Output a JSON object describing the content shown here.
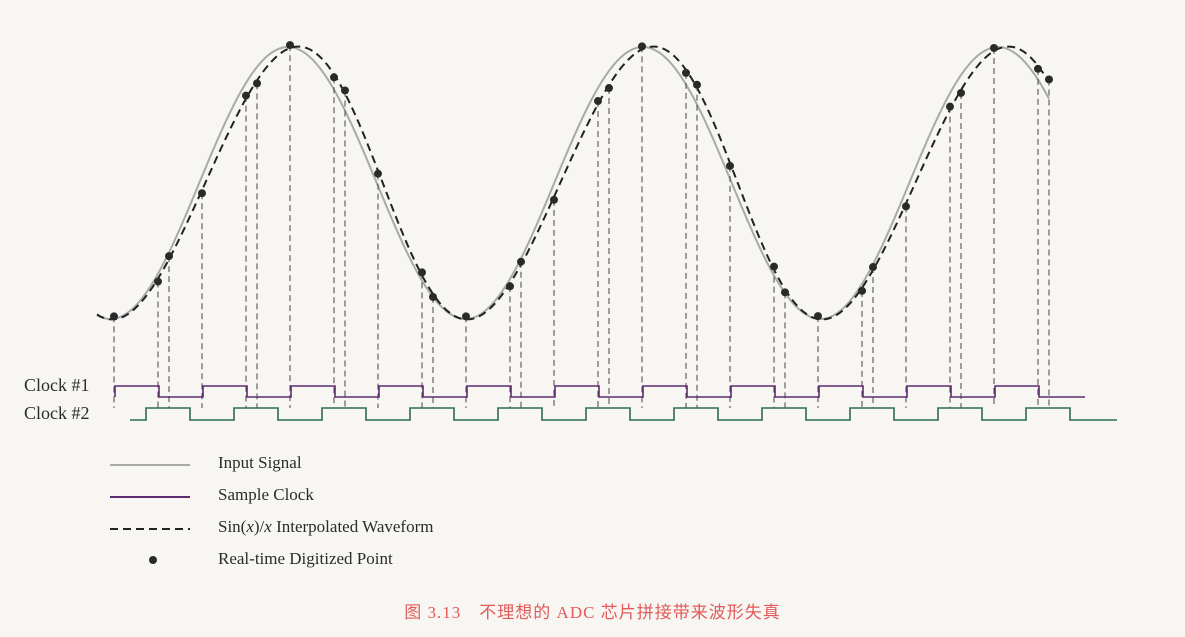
{
  "clock_labels": [
    "Clock #1",
    "Clock #2"
  ],
  "legend": [
    {
      "label": "Input Signal",
      "style": "solid",
      "color": "#a9a9a9"
    },
    {
      "label": "Sample Clock",
      "style": "solid",
      "color": "#5e2b6e"
    },
    {
      "label": "Sin(x)/x Interpolated Waveform",
      "style": "dashed",
      "color": "#222222"
    },
    {
      "label": "Real-time Digitized Point",
      "style": "dot",
      "color": "#333333"
    }
  ],
  "caption": "图 3.13　不理想的 ADC 芯片拼接带来波形失真",
  "colors": {
    "input_signal": "#a9a9a9",
    "interpolated": "#222222",
    "sample_clock": "#5e2b6e",
    "sample_clock_alt": "#2f6b55",
    "points": "#2a2a2a",
    "caption": "#e25a5a"
  }
}
